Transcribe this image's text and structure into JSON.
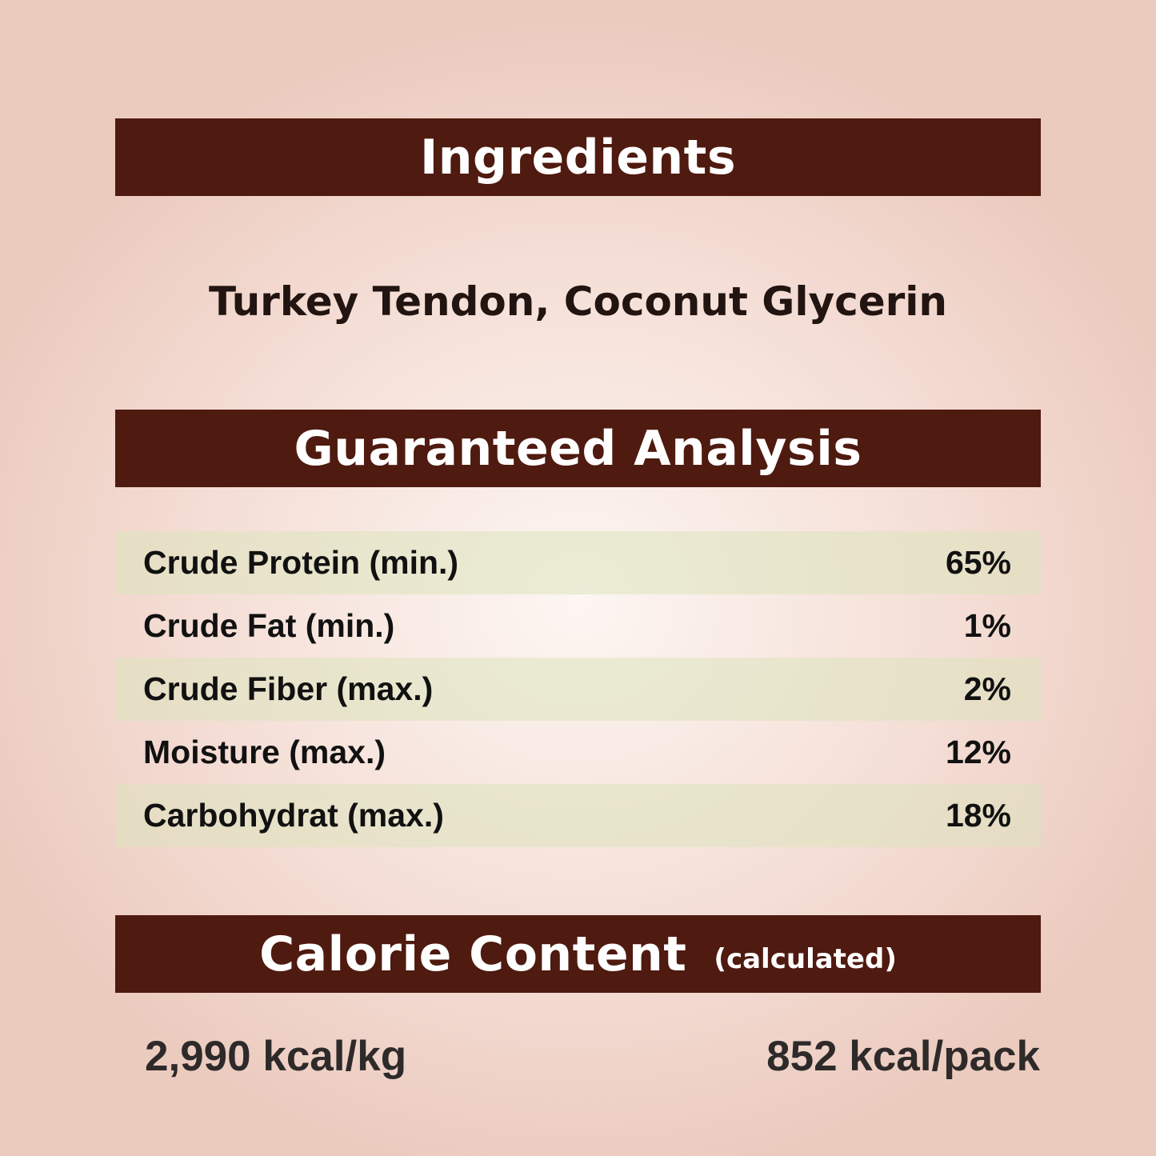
{
  "ingredients": {
    "heading": "Ingredients",
    "text": "Turkey Tendon, Coconut Glycerin"
  },
  "analysis": {
    "heading": "Guaranteed Analysis",
    "rows": [
      {
        "label": "Crude Protein (min.)",
        "value": "65%"
      },
      {
        "label": "Crude Fat (min.)",
        "value": "1%"
      },
      {
        "label": "Crude Fiber (max.)",
        "value": "2%"
      },
      {
        "label": "Moisture (max.)",
        "value": "12%"
      },
      {
        "label": "Carbohydrat (max.)",
        "value": "18%"
      }
    ]
  },
  "calories": {
    "heading": "Calorie Content",
    "subheading": "(calculated)",
    "per_kg": "2,990 kcal/kg",
    "per_pack": "852 kcal/pack"
  },
  "colors": {
    "header_bar": "#4f1a0f",
    "background": "#f0d2c8",
    "row_shade": "#e6e6c8"
  }
}
